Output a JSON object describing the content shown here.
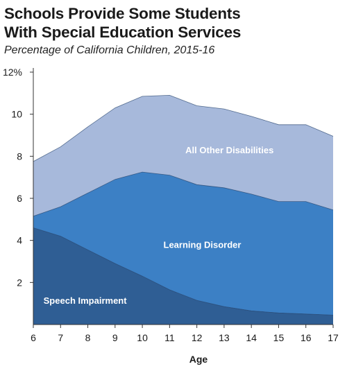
{
  "title_line1": "Schools Provide Some Students",
  "title_line2": "With Special Education Services",
  "subtitle": "Percentage of California Children, 2015-16",
  "chart_data": {
    "type": "area",
    "stacked": true,
    "x": [
      6,
      7,
      8,
      9,
      10,
      11,
      12,
      13,
      14,
      15,
      16,
      17
    ],
    "xlabel": "Age",
    "ylabel": "",
    "ylim": [
      0,
      12
    ],
    "yticks": [
      2,
      4,
      6,
      8,
      10,
      12
    ],
    "ytick_labels": [
      "2",
      "4",
      "6",
      "8",
      "10",
      "12%"
    ],
    "xticks": [
      6,
      7,
      8,
      9,
      10,
      11,
      12,
      13,
      14,
      15,
      16,
      17
    ],
    "grid": false,
    "series": [
      {
        "name": "Speech Impairment",
        "color": "#2f5e94",
        "values": [
          4.6,
          4.2,
          3.55,
          2.9,
          2.3,
          1.65,
          1.15,
          0.85,
          0.65,
          0.55,
          0.5,
          0.45
        ]
      },
      {
        "name": "Learning Disorder",
        "color": "#3c80c5",
        "values": [
          0.55,
          1.4,
          2.7,
          4.0,
          4.95,
          5.45,
          5.5,
          5.65,
          5.55,
          5.3,
          5.35,
          5.0
        ]
      },
      {
        "name": "All Other Disabilities",
        "color": "#a7b9db",
        "values": [
          2.6,
          2.85,
          3.15,
          3.4,
          3.6,
          3.8,
          3.75,
          3.75,
          3.7,
          3.65,
          3.65,
          3.5
        ]
      }
    ]
  }
}
